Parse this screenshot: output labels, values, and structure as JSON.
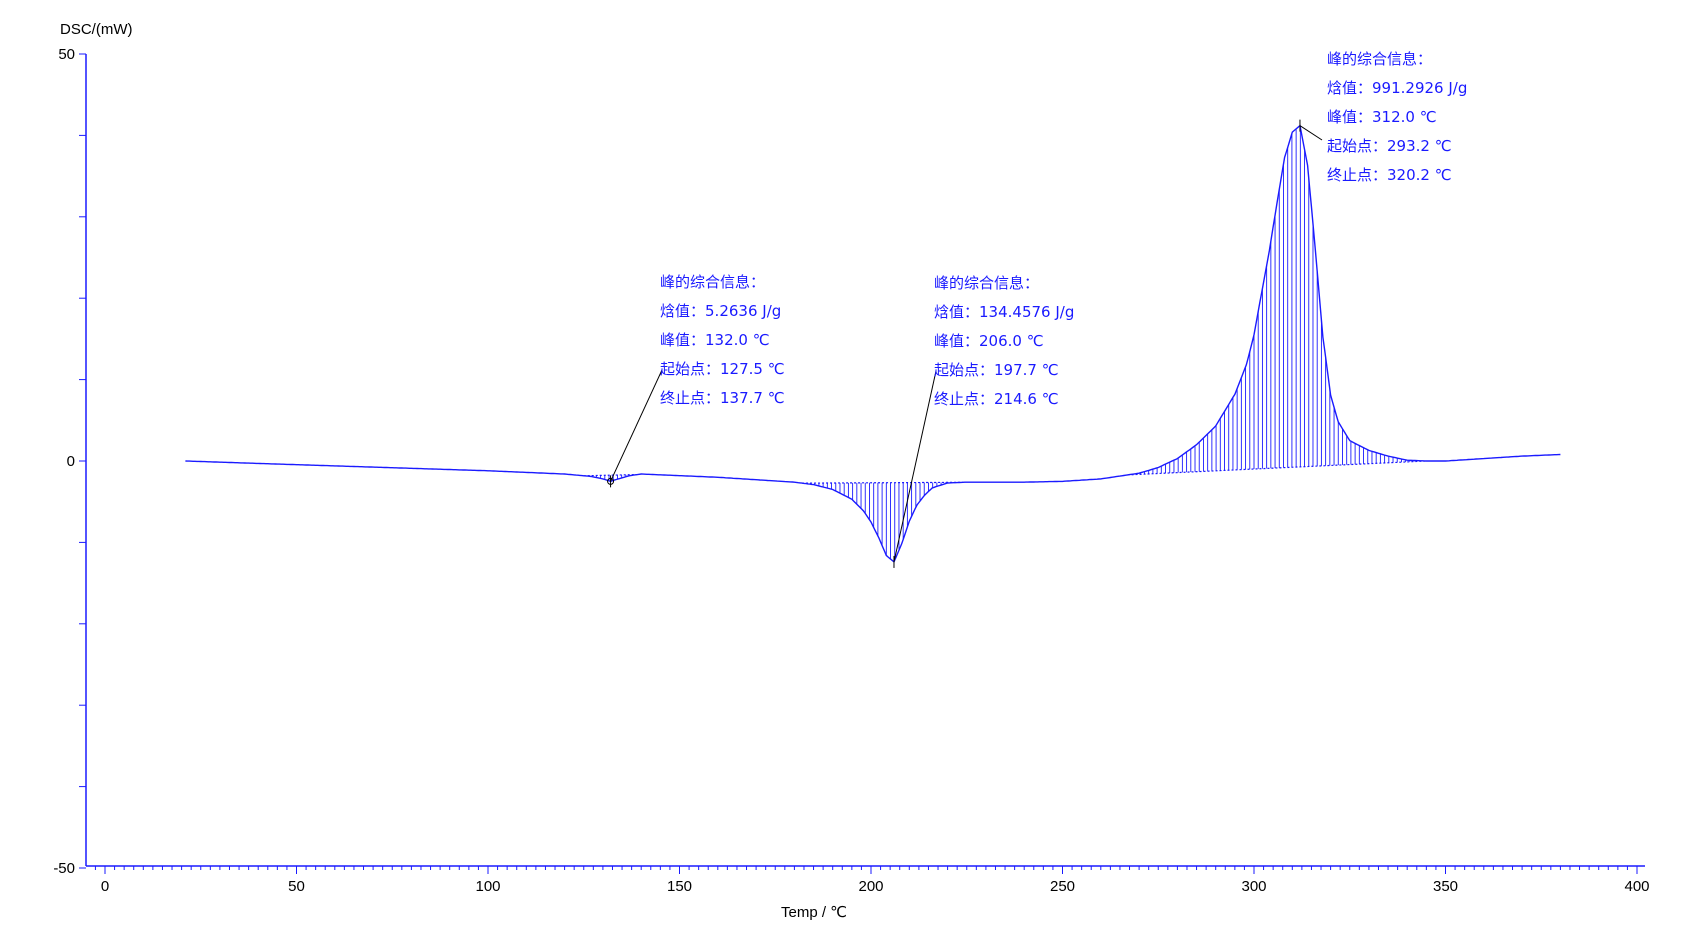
{
  "chart_data": {
    "type": "line",
    "title": "",
    "xlabel": "Temp / ℃",
    "ylabel": "DSC/(mW)",
    "xlim": [
      -5,
      405
    ],
    "ylim": [
      -50,
      50
    ],
    "x_ticks": [
      0,
      50,
      100,
      150,
      200,
      250,
      300,
      350,
      400
    ],
    "y_ticks": [
      50,
      0,
      -50
    ],
    "grid": false,
    "legend": "none",
    "colors": {
      "curve": "#1a1aff",
      "axis": "#1a1aff",
      "text": "#1a1aff",
      "leader": "#000000"
    },
    "series": [
      {
        "x": [
          21,
          40,
          60,
          80,
          100,
          120,
          127,
          130,
          132,
          134,
          137,
          140,
          150,
          160,
          170,
          180,
          185,
          190,
          195,
          198,
          200,
          202,
          204,
          206,
          208,
          210,
          212,
          214,
          216,
          220,
          225,
          230,
          240,
          250,
          260,
          270,
          275,
          280,
          285,
          290,
          295,
          298,
          300,
          302,
          304,
          306,
          308,
          310,
          312,
          314,
          316,
          318,
          320,
          322,
          325,
          330,
          335,
          340,
          345,
          350,
          360,
          370,
          380
        ],
        "y": [
          0,
          -0.3,
          -0.6,
          -0.9,
          -1.2,
          -1.6,
          -1.9,
          -2.2,
          -2.5,
          -2.2,
          -1.8,
          -1.6,
          -1.8,
          -2.0,
          -2.3,
          -2.6,
          -2.9,
          -3.5,
          -4.7,
          -6.1,
          -7.5,
          -9.4,
          -11.6,
          -12.4,
          -10.2,
          -7.4,
          -5.4,
          -4.2,
          -3.3,
          -2.7,
          -2.6,
          -2.6,
          -2.6,
          -2.5,
          -2.2,
          -1.5,
          -0.8,
          0.3,
          2.0,
          4.3,
          8.2,
          11.8,
          15.5,
          20.7,
          25.8,
          31.7,
          37.3,
          40.4,
          41.2,
          36.3,
          26.0,
          15.2,
          8.1,
          4.8,
          2.5,
          1.3,
          0.6,
          0.1,
          0,
          0,
          0.3,
          0.6,
          0.8
        ]
      }
    ],
    "peaks": [
      {
        "heading": "峰的综合信息：",
        "enthalpy_label": "焓值：",
        "enthalpy": "5.2636 J/g",
        "peak_label": "峰值：",
        "peak": "132.0",
        "onset_label": "起始点：",
        "onset": "127.5",
        "end_label": "终止点：",
        "end": "137.7",
        "unit": "℃",
        "peak_x": 132.0,
        "peak_y": -2.5,
        "onset_x": 127.5,
        "end_x": 137.7
      },
      {
        "heading": "峰的综合信息：",
        "enthalpy_label": "焓值：",
        "enthalpy": "134.4576 J/g",
        "peak_label": "峰值：",
        "peak": "206.0",
        "onset_label": "起始点：",
        "onset": "197.7",
        "end_label": "终止点：",
        "end": "214.6",
        "unit": "℃",
        "peak_x": 206.0,
        "peak_y": -12.4,
        "onset_x": 197.7,
        "end_x": 214.6
      },
      {
        "heading": "峰的综合信息：",
        "enthalpy_label": "焓值：",
        "enthalpy": "991.2926 J/g",
        "peak_label": "峰值：",
        "peak": "312.0",
        "onset_label": "起始点：",
        "onset": "293.2",
        "end_label": "终止点：",
        "end": "320.2",
        "unit": "℃",
        "peak_x": 312.0,
        "peak_y": 41.2,
        "onset_x": 293.2,
        "end_x": 320.2
      }
    ]
  }
}
